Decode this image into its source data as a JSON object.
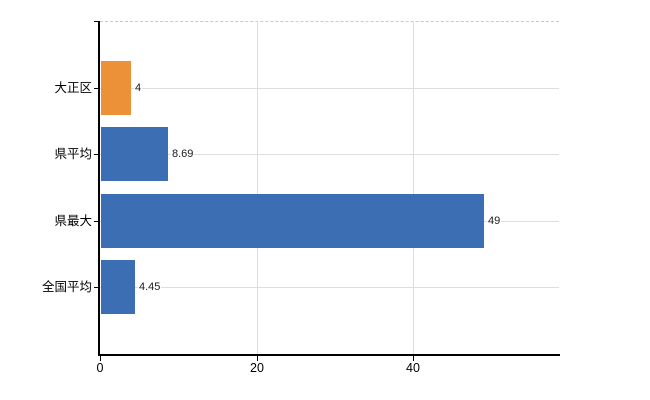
{
  "chart_data": {
    "type": "bar",
    "orientation": "horizontal",
    "title": "",
    "xlabel": "",
    "ylabel": "",
    "categories": [
      "大正区",
      "県平均",
      "県最大",
      "全国平均"
    ],
    "values": [
      4,
      8.69,
      49,
      4.45
    ],
    "value_labels": [
      "4",
      "8.69",
      "49",
      "4.45"
    ],
    "bar_colors": [
      "#EC9138",
      "#3C6EB3",
      "#3C6EB3",
      "#3C6EB3"
    ],
    "xlim": [
      0,
      58.7
    ],
    "x_ticks": [
      {
        "value": 0,
        "label": "0"
      },
      {
        "value": 20,
        "label": "20"
      },
      {
        "value": 40,
        "label": "40"
      }
    ],
    "grid": true,
    "legend": false,
    "colors": {
      "highlight_bar": "#EC9138",
      "default_bar": "#3C6EB3",
      "gridline": "#DDDDDD",
      "axis": "#000000",
      "plot_top_border": "#C9C9C9",
      "text": "#000000"
    }
  }
}
